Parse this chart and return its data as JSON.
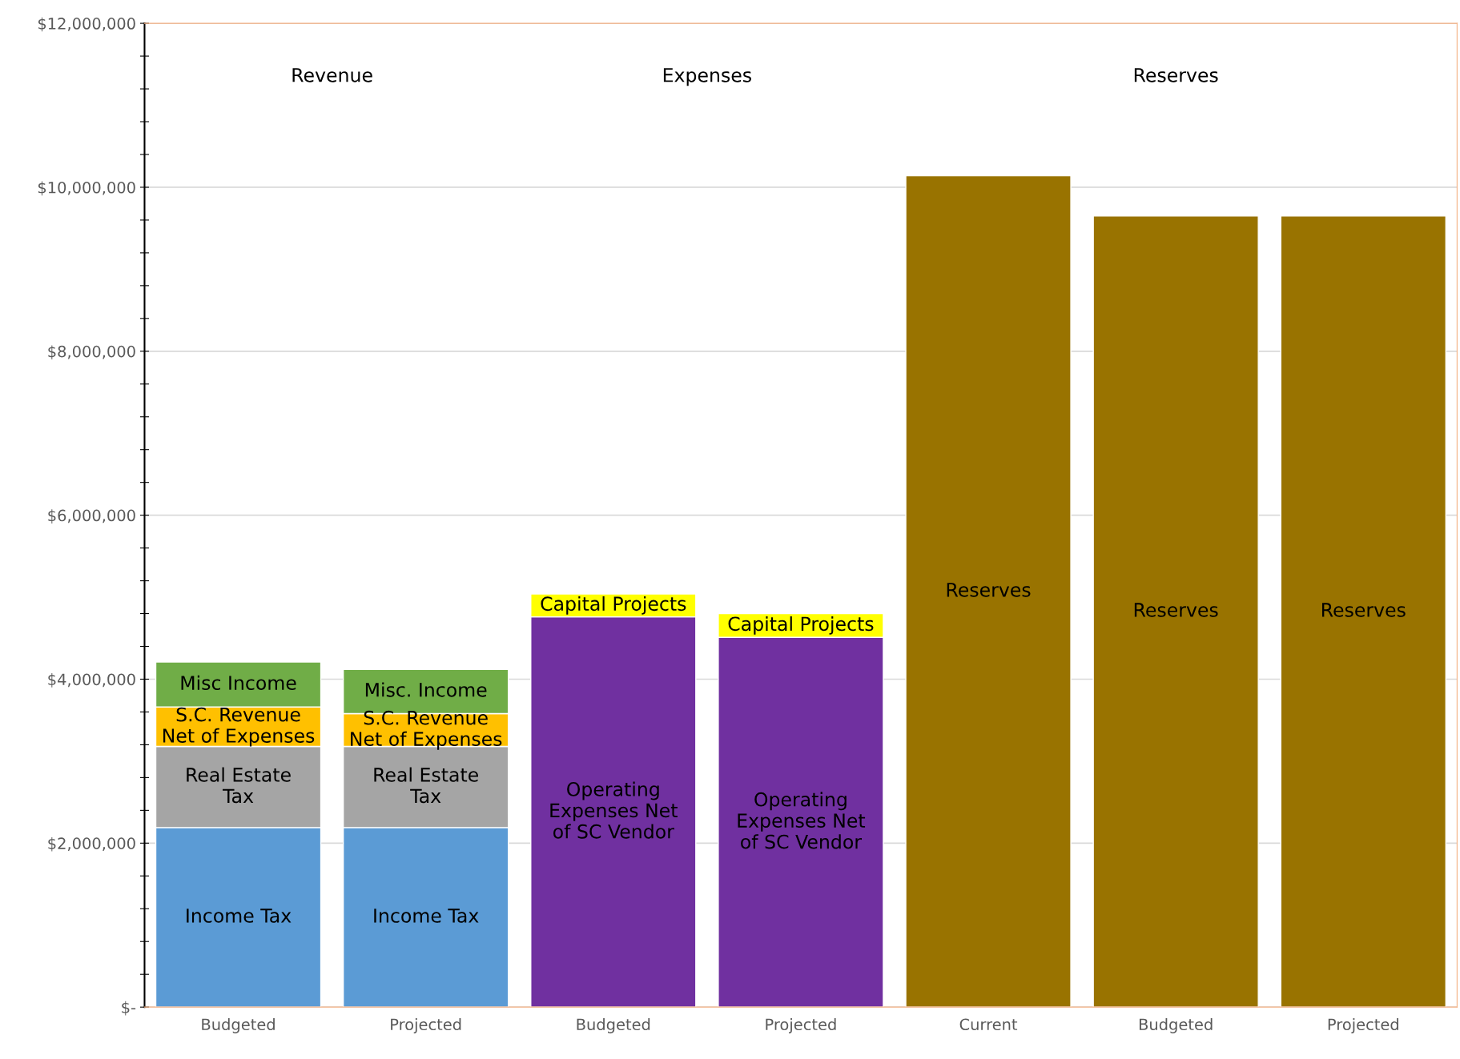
{
  "chart_data": {
    "type": "bar",
    "stacked": true,
    "categories": [
      "Budgeted",
      "Projected",
      "Budgeted",
      "Projected",
      "Current",
      "Budgeted",
      "Projected"
    ],
    "series": [
      {
        "color": "#5b9bd5",
        "values": [
          2190000,
          2190000,
          null,
          null,
          null,
          null,
          null
        ],
        "value_labels": [
          "Income Tax",
          "Income Tax",
          null,
          null,
          null,
          null,
          null
        ]
      },
      {
        "color": "#a5a5a5",
        "values": [
          990000,
          990000,
          null,
          null,
          null,
          null,
          null
        ],
        "value_labels": [
          "Real Estate\nTax",
          "Real Estate\nTax",
          null,
          null,
          null,
          null,
          null
        ]
      },
      {
        "color": "#ffc000",
        "values": [
          480000,
          400000,
          null,
          null,
          null,
          null,
          null
        ],
        "value_labels": [
          "S.C. Revenue\nNet of Expenses",
          "S.C. Revenue\nNet of Expenses",
          null,
          null,
          null,
          null,
          null
        ]
      },
      {
        "color": "#70ad47",
        "values": [
          550000,
          540000,
          null,
          null,
          null,
          null,
          null
        ],
        "value_labels": [
          "Misc Income",
          "Misc. Income",
          null,
          null,
          null,
          null,
          null
        ]
      },
      {
        "color": "#7030a0",
        "values": [
          null,
          null,
          4760000,
          4510000,
          null,
          null,
          null
        ],
        "value_labels": [
          null,
          null,
          "Operating\nExpenses Net\nof SC Vendor",
          "Operating\nExpenses Net\nof SC Vendor",
          null,
          null,
          null
        ]
      },
      {
        "color": "#ffff00",
        "values": [
          null,
          null,
          280000,
          290000,
          null,
          null,
          null
        ],
        "value_labels": [
          null,
          null,
          "Capital Projects",
          "Capital Projects",
          null,
          null,
          null
        ]
      },
      {
        "color": "#997300",
        "values": [
          null,
          null,
          null,
          null,
          10140000,
          9650000,
          9650000
        ],
        "value_labels": [
          null,
          null,
          null,
          null,
          "Reserves",
          "Reserves",
          "Reserves"
        ]
      }
    ],
    "annotations": [
      "Revenue",
      "Expenses",
      "Reserves"
    ],
    "ylim": [
      0,
      12000000
    ],
    "yticks": [
      {
        "value": 0,
        "label": "$-"
      },
      {
        "value": 400000,
        "label": null
      },
      {
        "value": 800000,
        "label": null
      },
      {
        "value": 1200000,
        "label": null
      },
      {
        "value": 1600000,
        "label": null
      },
      {
        "value": 2000000,
        "label": "$2,000,000"
      },
      {
        "value": 2400000,
        "label": null
      },
      {
        "value": 2800000,
        "label": null
      },
      {
        "value": 3200000,
        "label": null
      },
      {
        "value": 3600000,
        "label": null
      },
      {
        "value": 4000000,
        "label": "$4,000,000"
      },
      {
        "value": 4400000,
        "label": null
      },
      {
        "value": 4800000,
        "label": null
      },
      {
        "value": 5200000,
        "label": null
      },
      {
        "value": 5600000,
        "label": null
      },
      {
        "value": 6000000,
        "label": "$6,000,000"
      },
      {
        "value": 6400000,
        "label": null
      },
      {
        "value": 6800000,
        "label": null
      },
      {
        "value": 7200000,
        "label": null
      },
      {
        "value": 7600000,
        "label": null
      },
      {
        "value": 8000000,
        "label": "$8,000,000"
      },
      {
        "value": 8400000,
        "label": null
      },
      {
        "value": 8800000,
        "label": null
      },
      {
        "value": 9200000,
        "label": null
      },
      {
        "value": 9600000,
        "label": null
      },
      {
        "value": 10000000,
        "label": "$10,000,000"
      },
      {
        "value": 10400000,
        "label": null
      },
      {
        "value": 10800000,
        "label": null
      },
      {
        "value": 11200000,
        "label": null
      },
      {
        "value": 11600000,
        "label": null
      },
      {
        "value": 12000000,
        "label": "$12,000,000"
      }
    ],
    "grid": "y"
  }
}
